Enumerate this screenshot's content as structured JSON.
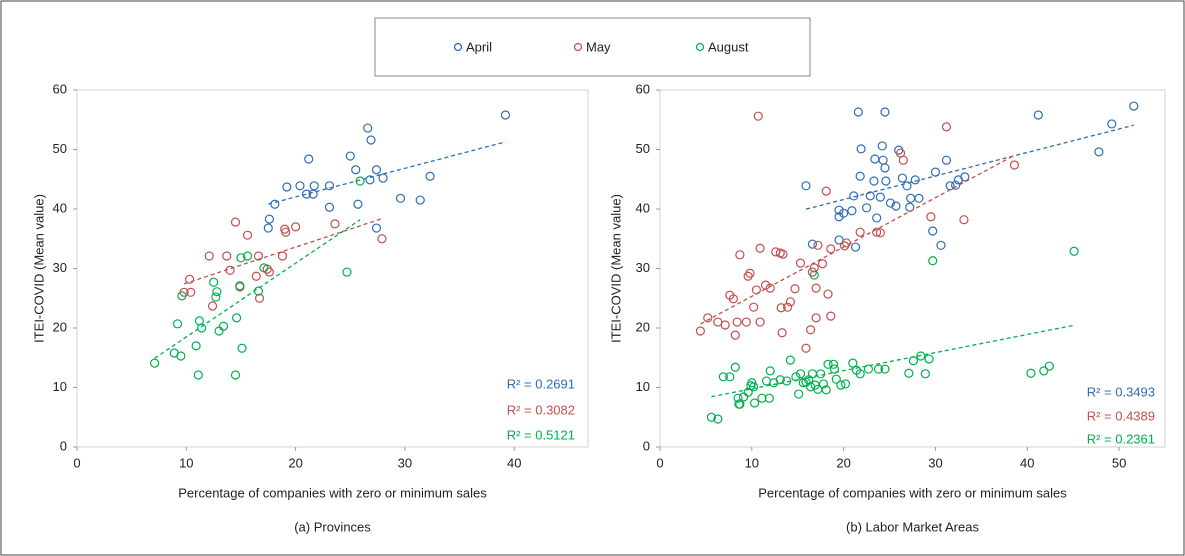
{
  "chart_data": [
    {
      "type": "scatter",
      "title": "(a) Provinces",
      "x_label": "Percentage of companies with zero or minimum sales",
      "y_label": "ITEI-COVID (Mean value)",
      "xlim": [
        0,
        46.75
      ],
      "ylim": [
        0,
        60
      ],
      "xticks": [
        0,
        10,
        20,
        30,
        40
      ],
      "yticks": [
        0,
        10,
        20,
        30,
        40,
        50,
        60
      ],
      "trendline": "linear",
      "series": [
        {
          "name": "April",
          "color": "#2e6db4",
          "r2_label": "R² = 0.2691",
          "x": [
            18.1,
            17.6,
            17.5,
            19.2,
            20.4,
            21.2,
            21.7,
            21.6,
            21.0,
            23.1,
            23.1,
            25.0,
            25.5,
            25.7,
            26.6,
            26.9,
            26.8,
            27.4,
            28.0,
            27.4,
            29.6,
            31.4,
            32.3,
            39.2
          ],
          "values": [
            40.8,
            38.3,
            36.8,
            43.7,
            43.9,
            48.4,
            43.9,
            42.5,
            42.5,
            40.3,
            43.9,
            48.9,
            46.6,
            40.8,
            53.6,
            51.6,
            44.9,
            46.6,
            45.2,
            36.8,
            41.8,
            41.5,
            45.5,
            55.8
          ]
        },
        {
          "name": "May",
          "color": "#c0504d",
          "r2_label": "R² = 0.3082",
          "x": [
            10.3,
            9.8,
            10.4,
            12.1,
            12.4,
            13.7,
            14.0,
            14.5,
            14.9,
            15.6,
            16.4,
            16.6,
            16.7,
            17.4,
            17.6,
            18.8,
            19.0,
            19.1,
            20.0,
            23.6,
            27.9
          ],
          "values": [
            28.2,
            26.0,
            26.0,
            32.1,
            23.7,
            32.1,
            29.7,
            37.8,
            26.9,
            35.6,
            28.7,
            32.1,
            25.0,
            29.9,
            29.4,
            32.1,
            36.6,
            36.1,
            37.0,
            37.5,
            35.0
          ]
        },
        {
          "name": "August",
          "color": "#00b050",
          "r2_label": "R² = 0.5121",
          "x": [
            7.1,
            8.9,
            9.2,
            9.5,
            9.6,
            10.9,
            11.1,
            11.2,
            11.4,
            12.5,
            12.7,
            12.8,
            13.0,
            13.4,
            14.6,
            14.5,
            14.9,
            15.1,
            15.0,
            15.6,
            16.6,
            17.1,
            24.7,
            25.9
          ],
          "values": [
            14.1,
            15.8,
            20.7,
            15.3,
            25.4,
            17.0,
            12.1,
            21.2,
            20.0,
            27.7,
            25.2,
            26.1,
            19.5,
            20.3,
            21.7,
            12.1,
            27.1,
            16.6,
            31.8,
            32.1,
            26.2,
            30.1,
            29.4,
            44.7
          ]
        }
      ]
    },
    {
      "type": "scatter",
      "title": "(b) Labor Market Areas",
      "x_label": "Percentage of companies with zero or minimum sales",
      "y_label": "ITEI-COVID (Mean value)",
      "xlim": [
        0,
        55
      ],
      "ylim": [
        0,
        60
      ],
      "xticks": [
        0,
        10,
        20,
        30,
        40,
        50
      ],
      "yticks": [
        0,
        10,
        20,
        30,
        40,
        50,
        60
      ],
      "trendline": "linear",
      "series": [
        {
          "color": "#2e6db4",
          "r2_label": "R² = 0.3493",
          "x": [
            15.9,
            16.6,
            19.5,
            19.5,
            19.5,
            20.0,
            20.9,
            21.1,
            21.3,
            21.6,
            21.9,
            21.8,
            22.5,
            22.9,
            23.3,
            23.4,
            23.6,
            24.0,
            24.2,
            24.3,
            24.5,
            24.6,
            24.5,
            25.1,
            25.7,
            26.0,
            26.4,
            26.9,
            27.2,
            27.3,
            27.8,
            28.2,
            29.7,
            30.0,
            30.6,
            31.2,
            31.6,
            32.2,
            32.5,
            33.2,
            41.2,
            47.8,
            49.2,
            51.6
          ],
          "values": [
            43.9,
            34.1,
            34.8,
            38.7,
            39.8,
            39.3,
            39.7,
            42.2,
            33.6,
            56.3,
            50.1,
            45.5,
            40.2,
            42.2,
            44.7,
            48.4,
            38.5,
            42.0,
            50.6,
            48.2,
            46.9,
            44.7,
            56.3,
            41.0,
            40.5,
            49.9,
            45.2,
            43.9,
            40.3,
            41.8,
            44.9,
            41.8,
            36.3,
            46.2,
            33.9,
            48.2,
            43.9,
            44.0,
            44.9,
            45.4,
            55.8,
            49.6,
            54.3,
            57.3
          ]
        },
        {
          "color": "#c0504d",
          "r2_label": "R² = 0.4389",
          "x": [
            4.4,
            5.2,
            6.3,
            7.1,
            7.6,
            8.0,
            8.2,
            8.4,
            8.7,
            9.4,
            9.6,
            9.8,
            10.2,
            10.5,
            10.7,
            10.9,
            10.9,
            11.5,
            12.0,
            12.6,
            13.1,
            13.2,
            13.3,
            13.4,
            13.9,
            14.2,
            14.7,
            15.3,
            15.9,
            16.4,
            16.6,
            16.8,
            17.0,
            17.0,
            17.2,
            17.7,
            18.1,
            18.3,
            18.6,
            18.6,
            20.1,
            20.3,
            21.8,
            23.6,
            24.0,
            26.2,
            26.5,
            29.5,
            31.2,
            33.1,
            38.6
          ],
          "values": [
            19.5,
            21.7,
            21.0,
            20.5,
            25.5,
            24.9,
            18.8,
            21.0,
            32.3,
            21.0,
            28.7,
            29.2,
            23.5,
            26.4,
            55.6,
            21.0,
            33.4,
            27.2,
            26.7,
            32.8,
            32.6,
            23.4,
            19.2,
            32.4,
            23.5,
            24.4,
            26.6,
            30.9,
            16.6,
            19.7,
            29.4,
            30.1,
            26.7,
            21.7,
            33.9,
            30.8,
            43.0,
            25.7,
            22.0,
            33.3,
            33.8,
            34.3,
            36.1,
            36.1,
            36.0,
            49.4,
            48.2,
            38.7,
            53.8,
            38.2,
            47.4
          ]
        },
        {
          "color": "#00b050",
          "r2_label": "R² = 0.2361",
          "x": [
            5.6,
            6.3,
            6.9,
            7.6,
            8.2,
            8.5,
            8.6,
            8.7,
            9.1,
            9.6,
            9.9,
            10.0,
            10.2,
            10.3,
            11.1,
            11.6,
            11.9,
            12.0,
            12.4,
            13.1,
            13.8,
            14.2,
            14.8,
            15.1,
            15.3,
            15.6,
            15.9,
            16.2,
            16.4,
            16.6,
            16.9,
            17.2,
            17.5,
            17.8,
            18.1,
            18.3,
            18.9,
            16.8,
            19.0,
            19.2,
            19.7,
            20.2,
            21.0,
            21.4,
            21.8,
            22.7,
            23.8,
            24.5,
            27.1,
            27.6,
            28.4,
            28.9,
            29.3,
            29.7,
            40.4,
            41.8,
            42.4,
            45.1
          ],
          "values": [
            5.0,
            4.7,
            11.8,
            11.8,
            13.4,
            8.2,
            7.2,
            7.2,
            8.4,
            9.2,
            10.3,
            10.8,
            10.1,
            7.4,
            8.2,
            11.1,
            8.2,
            12.8,
            10.8,
            11.3,
            11.1,
            14.6,
            11.8,
            8.9,
            12.3,
            10.8,
            10.9,
            11.3,
            10.1,
            12.3,
            10.4,
            9.7,
            12.3,
            10.6,
            9.6,
            13.9,
            13.9,
            28.9,
            13.1,
            11.4,
            10.4,
            10.6,
            14.1,
            12.9,
            12.3,
            13.1,
            13.1,
            13.1,
            12.4,
            14.5,
            15.3,
            12.3,
            14.8,
            31.3,
            12.4,
            12.8,
            13.6,
            32.9
          ]
        }
      ]
    }
  ]
}
